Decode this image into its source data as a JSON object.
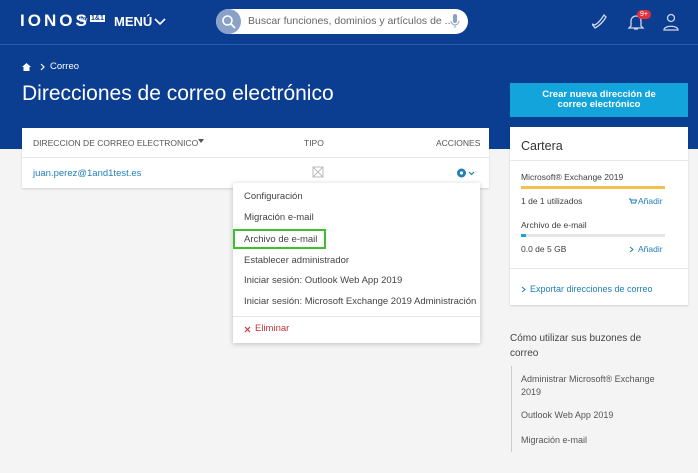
{
  "header": {
    "logo": "IONOS",
    "logo_by": "by",
    "logo_brand": "1&1",
    "menu": "MENÚ",
    "search_placeholder": "Buscar funciones, dominios y artículos de ...",
    "notification_badge": "9+"
  },
  "breadcrumb": [
    "Correo"
  ],
  "page_title": "Direcciones de correo electrónico",
  "create_button": "Crear nueva dirección de correo electrónico",
  "table": {
    "columns": [
      "DIRECCION DE CORREO ELECTRONICO",
      "TIPO",
      "ACCIONES"
    ],
    "rows": [
      [
        "juan.perez@1and1test.es"
      ]
    ]
  },
  "dropdown": {
    "items": [
      "Configuración",
      "Migración e-mail",
      "Archivo de e-mail",
      "Establecer administrador",
      "Iniciar sesión: Outlook Web App 2019",
      "Iniciar sesión: Microsoft Exchange 2019 Administración"
    ],
    "delete": "Eliminar"
  },
  "wallet": {
    "title": "Cartera",
    "products": [
      {
        "name": "Microsoft® Exchange 2019",
        "usage": "1 de 1 utilizados",
        "action": "Añadir"
      },
      {
        "name": "Archivo de e-mail",
        "usage": "0.0 de 5 GB",
        "action": "Añadir"
      }
    ],
    "export_link": "Exportar direcciones de correo"
  },
  "help": {
    "title": "Cómo utilizar sus buzones de correo",
    "links": [
      "Administrar Microsoft® Exchange 2019",
      "Outlook Web App 2019",
      "Migración e-mail"
    ]
  }
}
